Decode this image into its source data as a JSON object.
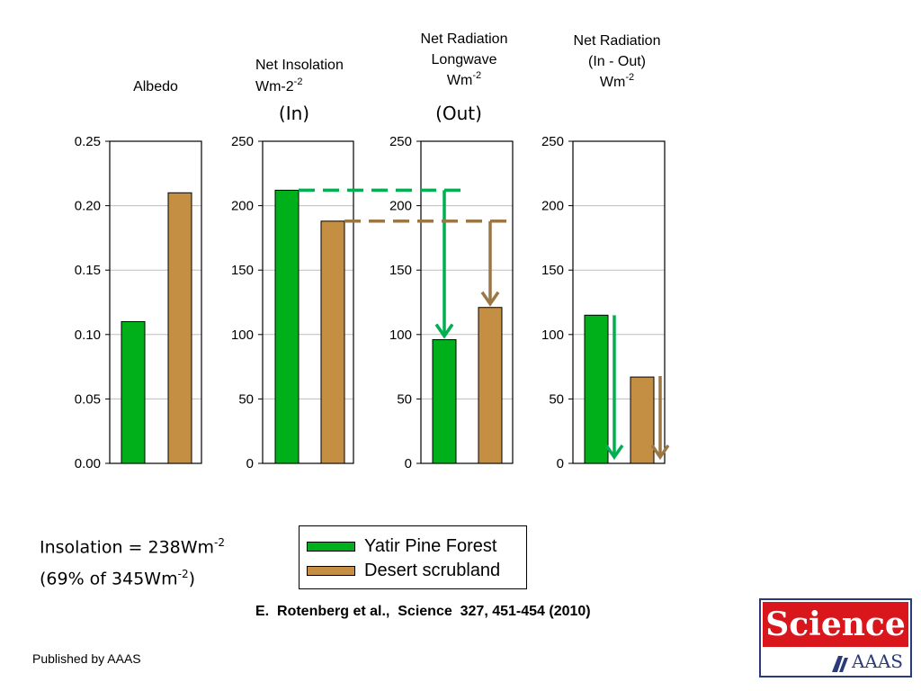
{
  "chart_data": [
    {
      "type": "bar",
      "title": "Albedo",
      "categories": [
        "Yatir Pine Forest",
        "Desert scrubland"
      ],
      "values": [
        0.11,
        0.21
      ],
      "ylim": [
        0,
        0.25
      ],
      "yticks": [
        "0.00",
        "0.05",
        "0.10",
        "0.15",
        "0.20",
        "0.25"
      ],
      "ytick_values": [
        0,
        0.05,
        0.1,
        0.15,
        0.2,
        0.25
      ],
      "grid": true
    },
    {
      "type": "bar",
      "title_lines": [
        "Net Insolation",
        "Wm-2"
      ],
      "title_sup": "-2",
      "subtitle": "(In)",
      "categories": [
        "Yatir Pine Forest",
        "Desert scrubland"
      ],
      "values": [
        212,
        188
      ],
      "ylim": [
        0,
        250
      ],
      "yticks": [
        "0",
        "50",
        "100",
        "150",
        "200",
        "250"
      ],
      "ytick_values": [
        0,
        50,
        100,
        150,
        200,
        250
      ],
      "grid": true
    },
    {
      "type": "bar",
      "title_lines": [
        "Net Radiation",
        "Longwave",
        "Wm"
      ],
      "title_sup": "-2",
      "subtitle": "(Out)",
      "categories": [
        "Yatir Pine Forest",
        "Desert scrubland"
      ],
      "values": [
        96,
        121
      ],
      "ylim": [
        0,
        250
      ],
      "yticks": [
        "0",
        "50",
        "100",
        "150",
        "200",
        "250"
      ],
      "ytick_values": [
        0,
        50,
        100,
        150,
        200,
        250
      ],
      "grid": true
    },
    {
      "type": "bar",
      "title_lines": [
        "Net Radiation",
        "(In - Out)",
        "Wm"
      ],
      "title_sup": "-2",
      "categories": [
        "Yatir Pine Forest",
        "Desert scrubland"
      ],
      "values": [
        115,
        67
      ],
      "ylim": [
        0,
        250
      ],
      "yticks": [
        "0",
        "50",
        "100",
        "150",
        "200",
        "250"
      ],
      "ytick_values": [
        0,
        50,
        100,
        150,
        200,
        250
      ],
      "grid": true
    }
  ],
  "colors": {
    "forest": "#00b01a",
    "desert": "#c48f43",
    "arrow_forest": "#00b050",
    "arrow_desert": "#9c7746"
  },
  "legend": {
    "items": [
      {
        "label": "Yatir Pine Forest"
      },
      {
        "label": "Desert scrubland"
      }
    ]
  },
  "note": {
    "line1_main": "Insolation = 238Wm",
    "line1_sup": "-2",
    "line2_main": "(69% of 345Wm",
    "line2_sup": "-2",
    "line2_end": ")"
  },
  "citation": "E.  Rotenberg et al.,  Science  327, 451-454 (2010)",
  "published_by": "Published by AAAS",
  "logo": {
    "top_text": "Science",
    "bottom_text": "AAAS"
  }
}
